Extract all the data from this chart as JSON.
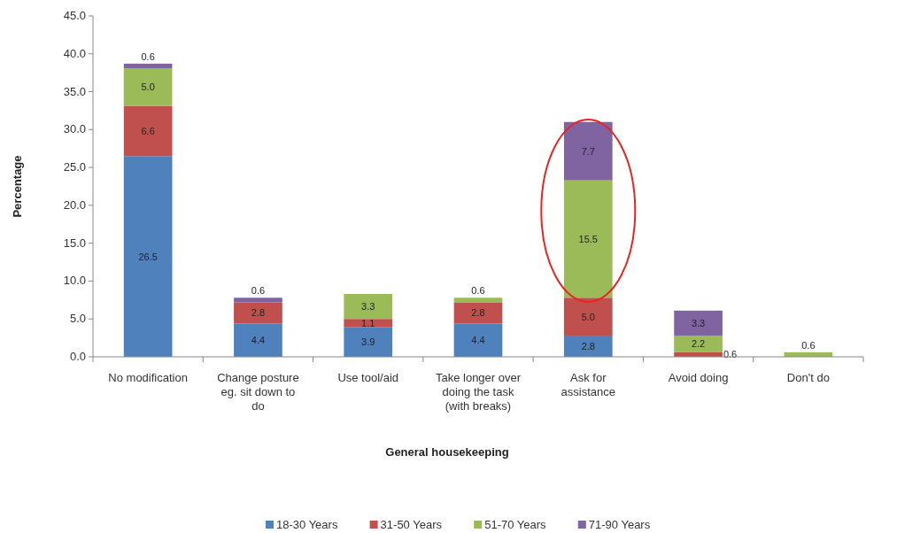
{
  "chart_data": {
    "type": "bar",
    "stacked": true,
    "xlabel": "General housekeeping",
    "ylabel": "Percentage",
    "categories": [
      "No modification",
      "Change posture eg. sit down to do",
      "Use tool/aid",
      "Take longer over doing the task (with breaks)",
      "Ask for assistance",
      "Avoid doing",
      "Don't do"
    ],
    "series": [
      {
        "name": "18-30 Years",
        "color": "#4f81bd",
        "values": [
          26.5,
          4.4,
          3.9,
          4.4,
          2.8,
          null,
          null
        ],
        "value_labels": [
          "26.5",
          "4.4",
          "3.9",
          "4.4",
          "2.8",
          null,
          null
        ]
      },
      {
        "name": "31-50 Years",
        "color": "#c0504d",
        "values": [
          6.6,
          2.8,
          1.1,
          2.8,
          5.0,
          0.6,
          null
        ],
        "value_labels": [
          "6.6",
          "2.8",
          "1.1",
          "2.8",
          "5.0",
          "0.6",
          null
        ]
      },
      {
        "name": "51-70 Years",
        "color": "#9bbb59",
        "values": [
          5.0,
          null,
          3.3,
          0.6,
          15.5,
          2.2,
          0.6
        ],
        "value_labels": [
          "5.0",
          null,
          "3.3",
          "0.6",
          "15.5",
          "2.2",
          "0.6"
        ]
      },
      {
        "name": "71-90 Years",
        "color": "#8064a2",
        "values": [
          0.6,
          0.6,
          null,
          null,
          7.7,
          3.3,
          null
        ],
        "value_labels": [
          "0.6",
          "0.6",
          null,
          null,
          "7.7",
          "3.3",
          null
        ]
      }
    ],
    "ylim": [
      0,
      45
    ],
    "yticks": [
      {
        "value": 0,
        "label": "0.0"
      },
      {
        "value": 5,
        "label": "5.0"
      },
      {
        "value": 10,
        "label": "10.0"
      },
      {
        "value": 15,
        "label": "15.0"
      },
      {
        "value": 20,
        "label": "20.0"
      },
      {
        "value": 25,
        "label": "25.0"
      },
      {
        "value": 30,
        "label": "30.0"
      },
      {
        "value": 35,
        "label": "35.0"
      },
      {
        "value": 40,
        "label": "40.0"
      },
      {
        "value": 45,
        "label": "45.0"
      }
    ],
    "grid": false,
    "legend": "bottom"
  }
}
